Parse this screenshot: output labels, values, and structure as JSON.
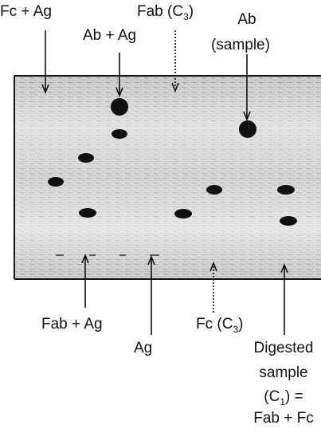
{
  "labels": {
    "fc_ag": "Fc + Ag",
    "ab_ag": "Ab + Ag",
    "fab_c3": {
      "text": "Fab (C",
      "sub": "3",
      "close": ")"
    },
    "ab_sample": [
      "Ab",
      "(sample)"
    ],
    "fab_ag": "Fab + Ag",
    "ag": "Ag",
    "fc_c3": {
      "text": "Fc (C",
      "sub": "3",
      "close": ")"
    },
    "digested": [
      "Digested",
      "sample",
      {
        "text": "(C",
        "sub": "1",
        "close": ") ="
      },
      "Fab + Fc"
    ]
  }
}
